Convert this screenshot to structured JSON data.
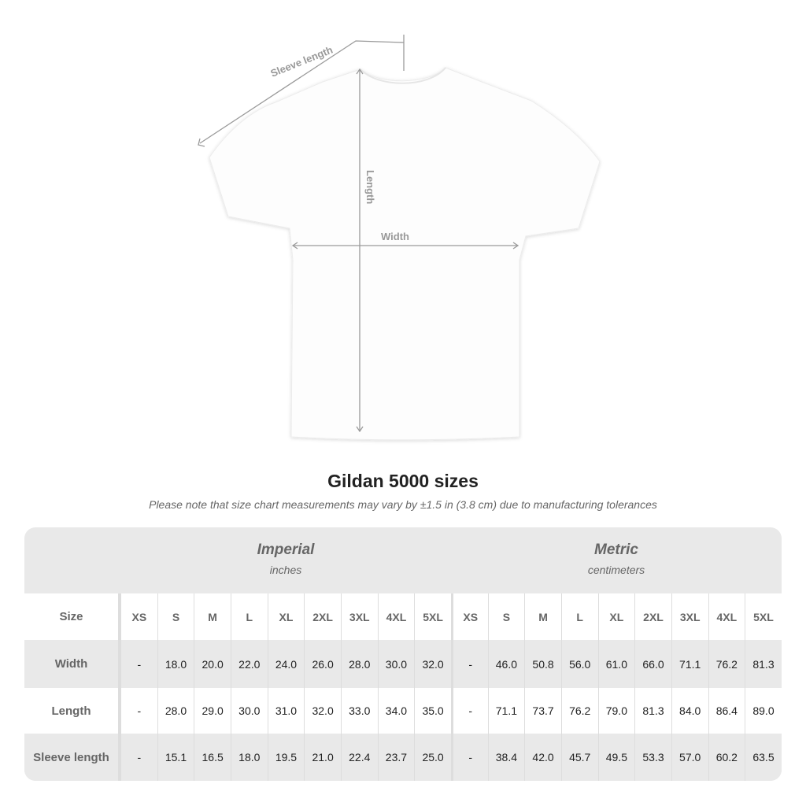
{
  "diagram": {
    "labels": {
      "sleeve": "Sleeve length",
      "length": "Length",
      "width": "Width"
    },
    "colors": {
      "shirt": "#ffffff",
      "measure_line": "#9a9a9a",
      "table_gray": "#e9e9e9"
    }
  },
  "title": "Gildan 5000 sizes",
  "note": "Please note that size chart measurements may vary by ±1.5 in (3.8 cm) due to manufacturing tolerances",
  "table": {
    "imperial": {
      "heading": "Imperial",
      "unit": "inches"
    },
    "metric": {
      "heading": "Metric",
      "unit": "centimeters"
    },
    "size_label": "Size",
    "sizes": [
      "XS",
      "S",
      "M",
      "L",
      "XL",
      "2XL",
      "3XL",
      "4XL",
      "5XL"
    ],
    "rows": [
      {
        "label": "Width",
        "imperial": [
          "-",
          "18.0",
          "20.0",
          "22.0",
          "24.0",
          "26.0",
          "28.0",
          "30.0",
          "32.0"
        ],
        "metric": [
          "-",
          "46.0",
          "50.8",
          "56.0",
          "61.0",
          "66.0",
          "71.1",
          "76.2",
          "81.3"
        ]
      },
      {
        "label": "Length",
        "imperial": [
          "-",
          "28.0",
          "29.0",
          "30.0",
          "31.0",
          "32.0",
          "33.0",
          "34.0",
          "35.0"
        ],
        "metric": [
          "-",
          "71.1",
          "73.7",
          "76.2",
          "79.0",
          "81.3",
          "84.0",
          "86.4",
          "89.0"
        ]
      },
      {
        "label": "Sleeve length",
        "imperial": [
          "-",
          "15.1",
          "16.5",
          "18.0",
          "19.5",
          "21.0",
          "22.4",
          "23.7",
          "25.0"
        ],
        "metric": [
          "-",
          "38.4",
          "42.0",
          "45.7",
          "49.5",
          "53.3",
          "57.0",
          "60.2",
          "63.5"
        ]
      }
    ]
  }
}
